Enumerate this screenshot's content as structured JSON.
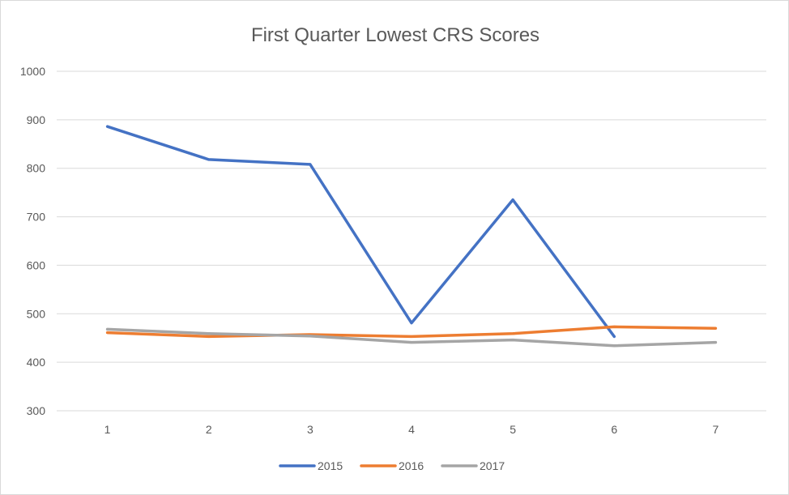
{
  "chart_data": {
    "type": "line",
    "title": "First Quarter Lowest CRS Scores",
    "xlabel": "",
    "ylabel": "",
    "categories": [
      "1",
      "2",
      "3",
      "4",
      "5",
      "6",
      "7"
    ],
    "ylim": [
      300,
      1000
    ],
    "yticks": [
      "300",
      "400",
      "500",
      "600",
      "700",
      "800",
      "900",
      "1000"
    ],
    "grid": true,
    "legend_position": "bottom",
    "series": [
      {
        "name": "2015",
        "color": "#4472C4",
        "values": [
          886,
          818,
          808,
          481,
          735,
          453,
          null
        ]
      },
      {
        "name": "2016",
        "color": "#ED7D31",
        "values": [
          461,
          453,
          457,
          453,
          459,
          473,
          470
        ]
      },
      {
        "name": "2017",
        "color": "#A5A5A5",
        "values": [
          468,
          459,
          454,
          441,
          446,
          434,
          441
        ]
      }
    ]
  }
}
